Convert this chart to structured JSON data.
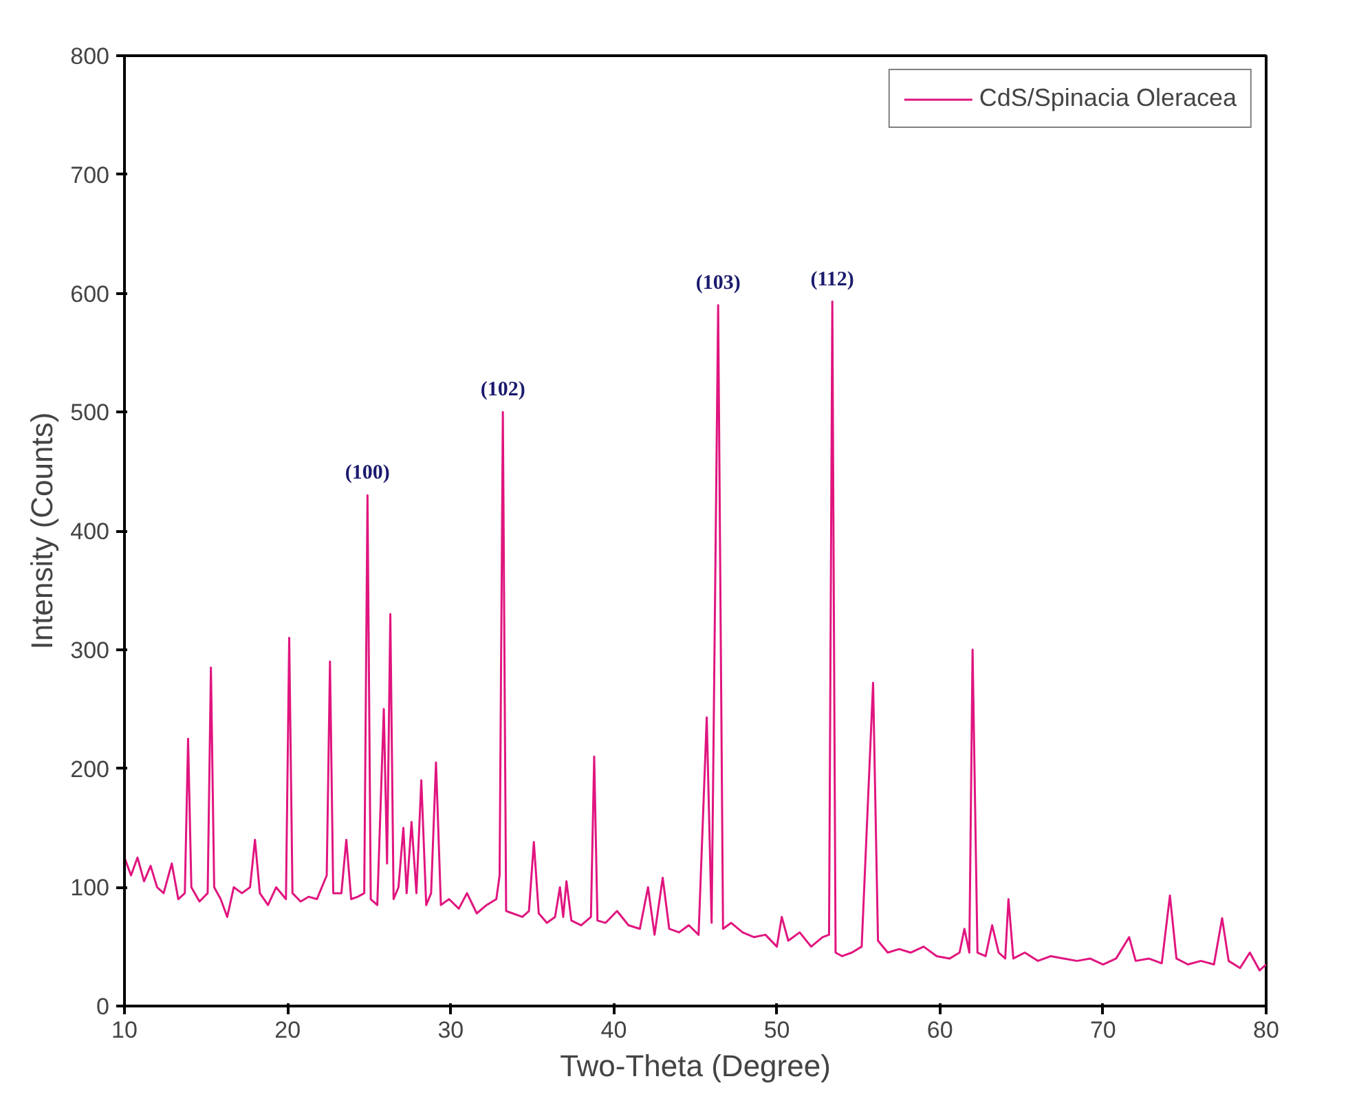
{
  "chart_data": {
    "type": "line",
    "xlabel": "Two-Theta (Degree)",
    "ylabel": "Intensity (Counts)",
    "xlim": [
      10,
      80
    ],
    "ylim": [
      0,
      800
    ],
    "xticks": [
      10,
      20,
      30,
      40,
      50,
      60,
      70,
      80
    ],
    "yticks": [
      0,
      100,
      200,
      300,
      400,
      500,
      600,
      700,
      800
    ],
    "grid": false,
    "legend": "top right",
    "marker": "none",
    "line_style": "solid",
    "annotations": [
      {
        "text": "(100)",
        "x": 24.9,
        "y": 430
      },
      {
        "text": "(102)",
        "x": 33.2,
        "y": 500
      },
      {
        "text": "(103)",
        "x": 46.4,
        "y": 590
      },
      {
        "text": "(112)",
        "x": 53.4,
        "y": 593
      }
    ],
    "series": [
      {
        "name": "CdS/Spinacia Oleracea",
        "color": "#e0157f",
        "x": [
          10,
          10.4,
          10.8,
          11.2,
          11.6,
          12.0,
          12.4,
          12.9,
          13.3,
          13.7,
          13.9,
          14.1,
          14.6,
          15.1,
          15.3,
          15.5,
          15.9,
          16.3,
          16.7,
          17.2,
          17.7,
          18.0,
          18.3,
          18.8,
          19.3,
          19.9,
          20.1,
          20.3,
          20.8,
          21.3,
          21.8,
          22.4,
          22.6,
          22.8,
          23.3,
          23.6,
          23.9,
          24.3,
          24.7,
          24.9,
          25.1,
          25.5,
          25.9,
          26.1,
          26.3,
          26.5,
          26.8,
          27.1,
          27.3,
          27.6,
          27.9,
          28.2,
          28.5,
          28.8,
          29.1,
          29.4,
          29.9,
          30.5,
          31.0,
          31.6,
          32.2,
          32.8,
          33.0,
          33.2,
          33.4,
          33.8,
          34.4,
          34.8,
          35.1,
          35.4,
          35.9,
          36.4,
          36.7,
          36.9,
          37.1,
          37.4,
          38.0,
          38.6,
          38.8,
          39.0,
          39.5,
          40.2,
          40.9,
          41.6,
          42.1,
          42.5,
          43.0,
          43.4,
          44.0,
          44.6,
          45.2,
          45.7,
          46.0,
          46.4,
          46.7,
          47.2,
          47.9,
          48.6,
          49.3,
          50.0,
          50.3,
          50.7,
          51.4,
          52.1,
          52.8,
          53.2,
          53.4,
          53.6,
          54.0,
          54.6,
          55.2,
          55.9,
          56.2,
          56.8,
          57.5,
          58.2,
          59.0,
          59.8,
          60.6,
          61.2,
          61.5,
          61.8,
          62.0,
          62.3,
          62.8,
          63.2,
          63.6,
          64.0,
          64.2,
          64.5,
          65.2,
          66.0,
          66.8,
          67.6,
          68.4,
          69.2,
          70.0,
          70.8,
          71.6,
          72.0,
          72.8,
          73.6,
          74.1,
          74.5,
          75.2,
          76.0,
          76.8,
          77.3,
          77.7,
          78.4,
          79.0,
          79.6,
          80
        ],
        "values": [
          125,
          110,
          125,
          105,
          118,
          100,
          95,
          120,
          90,
          95,
          225,
          100,
          88,
          95,
          285,
          100,
          90,
          75,
          100,
          95,
          100,
          140,
          95,
          85,
          100,
          90,
          310,
          95,
          88,
          92,
          90,
          110,
          290,
          95,
          95,
          140,
          90,
          92,
          95,
          430,
          90,
          85,
          250,
          120,
          330,
          90,
          100,
          150,
          95,
          155,
          95,
          190,
          85,
          95,
          205,
          85,
          90,
          82,
          95,
          78,
          85,
          90,
          110,
          500,
          80,
          78,
          75,
          80,
          138,
          78,
          70,
          75,
          100,
          75,
          105,
          72,
          68,
          75,
          210,
          72,
          70,
          80,
          68,
          65,
          100,
          60,
          108,
          65,
          62,
          68,
          60,
          243,
          70,
          590,
          65,
          70,
          62,
          58,
          60,
          50,
          75,
          55,
          62,
          50,
          58,
          60,
          593,
          45,
          42,
          45,
          50,
          272,
          55,
          45,
          48,
          45,
          50,
          42,
          40,
          45,
          65,
          45,
          300,
          45,
          42,
          68,
          45,
          40,
          90,
          40,
          45,
          38,
          42,
          40,
          38,
          40,
          35,
          40,
          58,
          38,
          40,
          36,
          93,
          40,
          35,
          38,
          35,
          74,
          38,
          32,
          45,
          30,
          35
        ]
      }
    ]
  }
}
